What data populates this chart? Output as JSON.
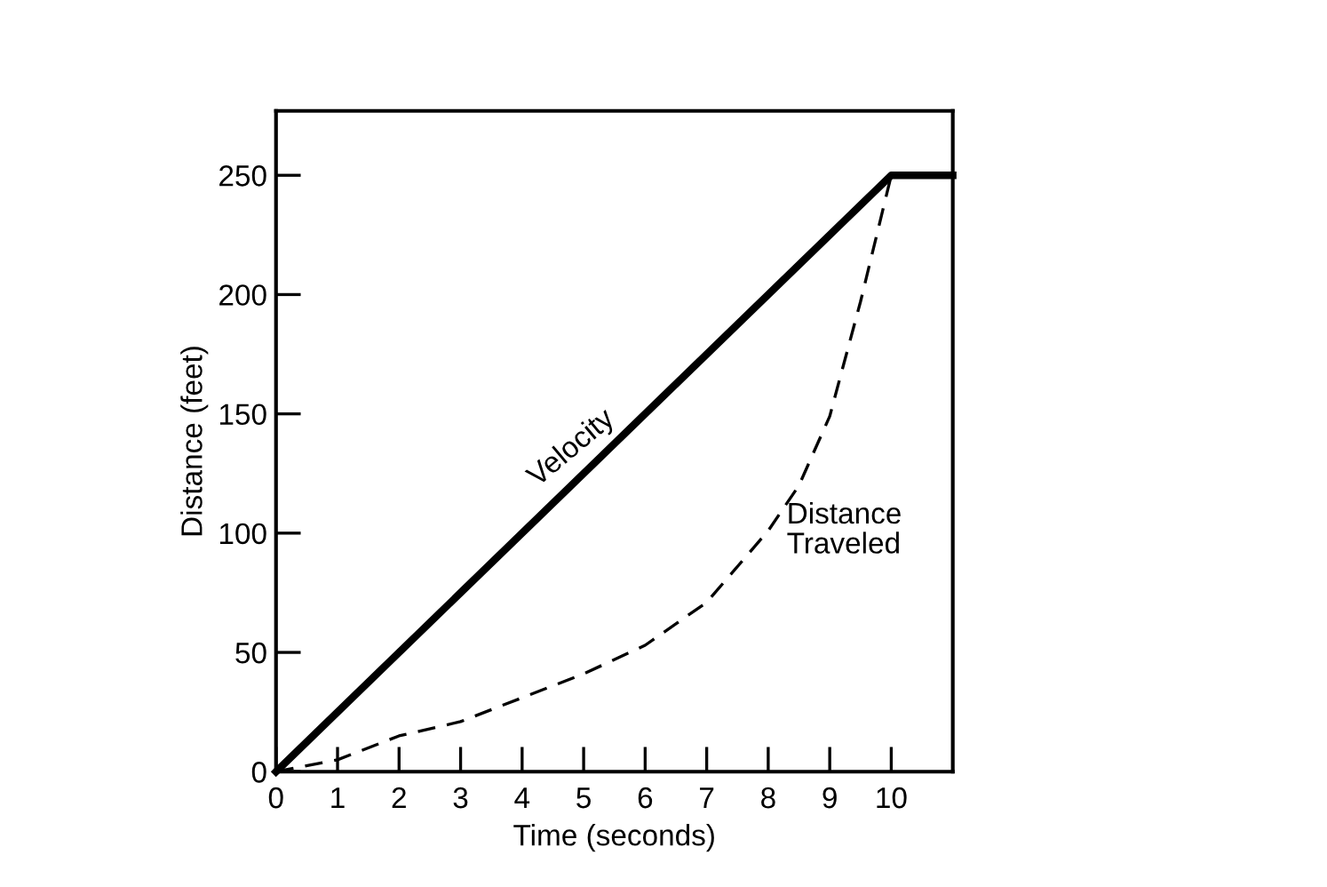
{
  "chart_data": {
    "type": "line",
    "xlabel": "Time (seconds)",
    "ylabel": "Distance (feet)",
    "xlim": [
      0,
      11
    ],
    "ylim": [
      0,
      277
    ],
    "xticks": [
      0,
      1,
      2,
      3,
      4,
      5,
      6,
      7,
      8,
      9,
      10
    ],
    "yticks": [
      0,
      50,
      100,
      150,
      200,
      250
    ],
    "grid": false,
    "legend": false,
    "marker": "none",
    "series": [
      {
        "name": "Velocity",
        "color": "#000000",
        "line_style": "solid",
        "x": [
          0,
          10,
          11
        ],
        "values": [
          0,
          250,
          250
        ]
      },
      {
        "name": "Distance Traveled",
        "color": "#000000",
        "line_style": "dashed",
        "x": [
          0,
          1,
          2,
          3,
          4,
          5,
          6,
          7,
          8,
          8.5,
          9,
          9.5,
          10
        ],
        "values": [
          0,
          5,
          15,
          21,
          31,
          41,
          53,
          71,
          101,
          120,
          149,
          197,
          250
        ]
      }
    ]
  }
}
